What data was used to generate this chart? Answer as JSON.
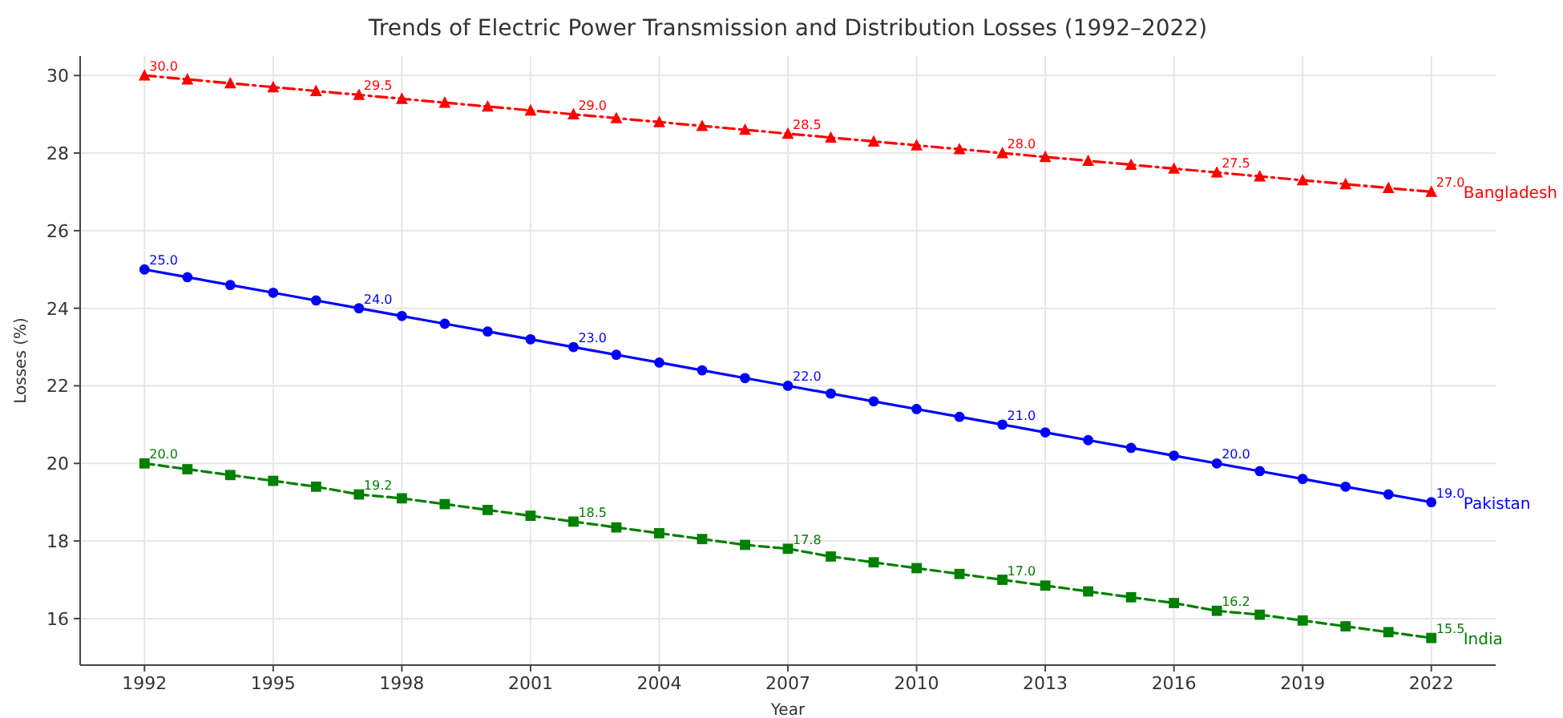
{
  "chart_data": {
    "type": "line",
    "title": "Trends of Electric Power Transmission and Distribution Losses (1992–2022)",
    "xlabel": "Year",
    "ylabel": "Losses (%)",
    "x": [
      1992,
      1993,
      1994,
      1995,
      1996,
      1997,
      1998,
      1999,
      2000,
      2001,
      2002,
      2003,
      2004,
      2005,
      2006,
      2007,
      2008,
      2009,
      2010,
      2011,
      2012,
      2013,
      2014,
      2015,
      2016,
      2017,
      2018,
      2019,
      2020,
      2021,
      2022
    ],
    "series": [
      {
        "name": "Bangladesh",
        "color": "#ff0000",
        "marker": "triangle",
        "line_style": "dashdot",
        "values": [
          30,
          29.9,
          29.8,
          29.7,
          29.6,
          29.5,
          29.4,
          29.3,
          29.2,
          29.1,
          29,
          28.9,
          28.8,
          28.7,
          28.6,
          28.5,
          28.4,
          28.3,
          28.2,
          28.1,
          28,
          27.9,
          27.8,
          27.7,
          27.6,
          27.5,
          27.4,
          27.3,
          27.2,
          27.1,
          27
        ],
        "value_labels": [
          "30.0",
          null,
          null,
          null,
          null,
          "29.5",
          null,
          null,
          null,
          null,
          "29.0",
          null,
          null,
          null,
          null,
          "28.5",
          null,
          null,
          null,
          null,
          "28.0",
          null,
          null,
          null,
          null,
          "27.5",
          null,
          null,
          null,
          null,
          "27.0"
        ]
      },
      {
        "name": "Pakistan",
        "color": "#0000ff",
        "marker": "circle",
        "line_style": "solid",
        "values": [
          25,
          24.8,
          24.6,
          24.4,
          24.2,
          24,
          23.8,
          23.6,
          23.4,
          23.2,
          23,
          22.8,
          22.6,
          22.4,
          22.2,
          22,
          21.8,
          21.6,
          21.4,
          21.2,
          21,
          20.8,
          20.6,
          20.4,
          20.2,
          20,
          19.8,
          19.6,
          19.4,
          19.2,
          19
        ],
        "value_labels": [
          "25.0",
          null,
          null,
          null,
          null,
          "24.0",
          null,
          null,
          null,
          null,
          "23.0",
          null,
          null,
          null,
          null,
          "22.0",
          null,
          null,
          null,
          null,
          "21.0",
          null,
          null,
          null,
          null,
          "20.0",
          null,
          null,
          null,
          null,
          "19.0"
        ]
      },
      {
        "name": "India",
        "color": "#008000",
        "marker": "square",
        "line_style": "dashed",
        "values": [
          20,
          19.85,
          19.7,
          19.55,
          19.4,
          19.2,
          19.1,
          18.95,
          18.8,
          18.65,
          18.5,
          18.35,
          18.2,
          18.05,
          17.9,
          17.8,
          17.6,
          17.45,
          17.3,
          17.15,
          17,
          16.85,
          16.7,
          16.55,
          16.4,
          16.2,
          16.1,
          15.95,
          15.8,
          15.65,
          15.5
        ],
        "value_labels": [
          "20.0",
          null,
          null,
          null,
          null,
          "19.2",
          null,
          null,
          null,
          null,
          "18.5",
          null,
          null,
          null,
          null,
          "17.8",
          null,
          null,
          null,
          null,
          "17.0",
          null,
          null,
          null,
          null,
          "16.2",
          null,
          null,
          null,
          null,
          "15.5"
        ]
      }
    ],
    "xlim": [
      1990.5,
      2023.5
    ],
    "xticks": [
      1992,
      1995,
      1998,
      2001,
      2004,
      2007,
      2010,
      2013,
      2016,
      2019,
      2022
    ],
    "ylim": [
      14.8,
      30.5
    ],
    "yticks": [
      16,
      18,
      20,
      22,
      24,
      26,
      28,
      30
    ],
    "grid": true
  }
}
